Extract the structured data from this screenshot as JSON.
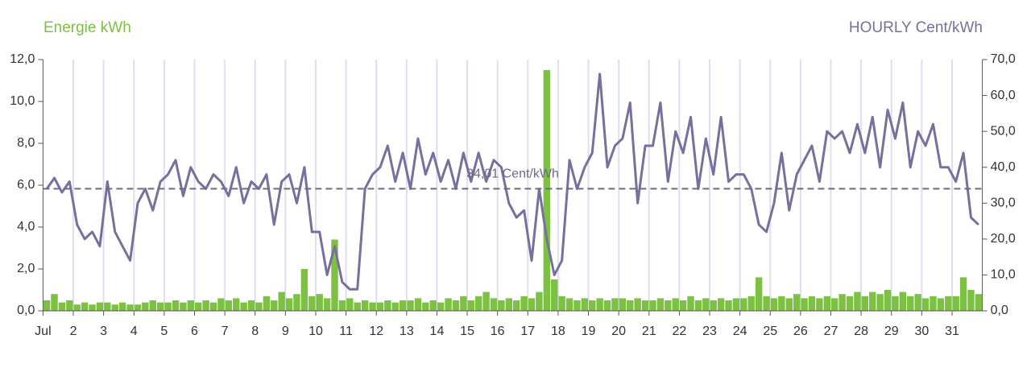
{
  "chart_data": {
    "type": "bar_line",
    "ylabel": "Energie kWh",
    "y2label": "HOURLY Cent/kWh",
    "xlim": [
      1,
      32
    ],
    "xticks": [
      {
        "value": 1,
        "label": "Jul"
      },
      2,
      3,
      4,
      5,
      6,
      7,
      8,
      9,
      10,
      11,
      12,
      13,
      14,
      15,
      16,
      17,
      18,
      19,
      20,
      21,
      22,
      23,
      24,
      25,
      26,
      27,
      28,
      29,
      30,
      31
    ],
    "ylim": [
      0,
      12
    ],
    "yticks": [
      {
        "value": 0,
        "label": "0,0"
      },
      {
        "value": 2,
        "label": "2,0"
      },
      {
        "value": 4,
        "label": "4,0"
      },
      {
        "value": 6,
        "label": "6,0"
      },
      {
        "value": 8,
        "label": "8,0"
      },
      {
        "value": 10,
        "label": "10,0"
      },
      {
        "value": 12,
        "label": "12,0"
      }
    ],
    "y2lim": [
      0,
      70
    ],
    "y2ticks": [
      {
        "value": 0,
        "label": "0,0"
      },
      {
        "value": 10,
        "label": "10,0"
      },
      {
        "value": 20,
        "label": "20,0"
      },
      {
        "value": 30,
        "label": "30,0"
      },
      {
        "value": 40,
        "label": "40,0"
      },
      {
        "value": 50,
        "label": "50,0"
      },
      {
        "value": 60,
        "label": "60,0"
      },
      {
        "value": 70,
        "label": "70,0"
      }
    ],
    "grid": true,
    "average": {
      "value": 34.01,
      "label": "34,01 Cent/kWh",
      "color": "#6e6a86"
    },
    "x": [
      1,
      1.25,
      1.5,
      1.75,
      2,
      2.25,
      2.5,
      2.75,
      3,
      3.25,
      3.5,
      3.75,
      4,
      4.25,
      4.5,
      4.75,
      5,
      5.25,
      5.5,
      5.75,
      6,
      6.25,
      6.5,
      6.75,
      7,
      7.25,
      7.5,
      7.75,
      8,
      8.25,
      8.5,
      8.75,
      9,
      9.25,
      9.5,
      9.75,
      10,
      10.25,
      10.5,
      10.75,
      11,
      11.25,
      11.5,
      11.75,
      12,
      12.25,
      12.5,
      12.75,
      13,
      13.25,
      13.5,
      13.75,
      14,
      14.25,
      14.5,
      14.75,
      15,
      15.25,
      15.5,
      15.75,
      16,
      16.25,
      16.5,
      16.75,
      17,
      17.25,
      17.5,
      17.75,
      18,
      18.25,
      18.5,
      18.75,
      19,
      19.25,
      19.5,
      19.75,
      20,
      20.25,
      20.5,
      20.75,
      21,
      21.25,
      21.5,
      21.75,
      22,
      22.25,
      22.5,
      22.75,
      23,
      23.25,
      23.5,
      23.75,
      24,
      24.25,
      24.5,
      24.75,
      25,
      25.25,
      25.5,
      25.75,
      26,
      26.25,
      26.5,
      26.75,
      27,
      27.25,
      27.5,
      27.75,
      28,
      28.25,
      28.5,
      28.75,
      29,
      29.25,
      29.5,
      29.75,
      30,
      30.25,
      30.5,
      30.75,
      31,
      31.25,
      31.5,
      31.75
    ],
    "series": [
      {
        "name": "Energie kWh",
        "color": "#7cc142",
        "axis": "y",
        "kind": "bar",
        "values": [
          0.5,
          0.8,
          0.4,
          0.5,
          0.3,
          0.4,
          0.3,
          0.4,
          0.4,
          0.3,
          0.4,
          0.3,
          0.3,
          0.4,
          0.5,
          0.4,
          0.4,
          0.5,
          0.4,
          0.5,
          0.4,
          0.5,
          0.4,
          0.6,
          0.5,
          0.6,
          0.4,
          0.5,
          0.4,
          0.7,
          0.5,
          0.9,
          0.6,
          0.8,
          2.0,
          0.7,
          0.8,
          0.6,
          3.4,
          0.5,
          0.6,
          0.4,
          0.5,
          0.4,
          0.4,
          0.5,
          0.4,
          0.5,
          0.5,
          0.6,
          0.4,
          0.5,
          0.4,
          0.6,
          0.5,
          0.7,
          0.5,
          0.7,
          0.9,
          0.6,
          0.5,
          0.6,
          0.5,
          0.7,
          0.6,
          0.9,
          11.5,
          1.5,
          0.7,
          0.6,
          0.5,
          0.6,
          0.5,
          0.6,
          0.5,
          0.6,
          0.6,
          0.5,
          0.6,
          0.5,
          0.5,
          0.6,
          0.5,
          0.6,
          0.5,
          0.7,
          0.5,
          0.6,
          0.5,
          0.6,
          0.5,
          0.6,
          0.6,
          0.7,
          1.6,
          0.7,
          0.6,
          0.7,
          0.6,
          0.8,
          0.6,
          0.7,
          0.6,
          0.7,
          0.6,
          0.8,
          0.7,
          0.9,
          0.7,
          0.9,
          0.8,
          1.0,
          0.7,
          0.9,
          0.7,
          0.8,
          0.6,
          0.7,
          0.6,
          0.7,
          0.7,
          1.6,
          1.0,
          0.8
        ]
      },
      {
        "name": "HOURLY Cent/kWh",
        "color": "#7a6e9e",
        "axis": "y2",
        "kind": "line",
        "values": [
          34,
          37,
          33,
          36,
          24,
          20,
          22,
          18,
          36,
          22,
          18,
          14,
          30,
          34,
          28,
          36,
          38,
          42,
          32,
          40,
          36,
          34,
          38,
          36,
          32,
          40,
          30,
          36,
          34,
          38,
          24,
          36,
          38,
          30,
          40,
          22,
          22,
          10,
          18,
          8,
          6,
          6,
          34,
          38,
          40,
          46,
          36,
          44,
          34,
          48,
          38,
          44,
          36,
          42,
          34,
          44,
          36,
          44,
          36,
          42,
          40,
          30,
          26,
          28,
          14,
          34,
          20,
          10,
          14,
          42,
          34,
          40,
          44,
          66,
          40,
          46,
          48,
          58,
          30,
          46,
          46,
          58,
          36,
          50,
          44,
          54,
          34,
          48,
          38,
          54,
          36,
          38,
          38,
          34,
          24,
          22,
          30,
          44,
          28,
          38,
          42,
          46,
          36,
          50,
          48,
          50,
          44,
          52,
          44,
          54,
          40,
          56,
          48,
          58,
          40,
          50,
          46,
          52,
          40,
          40,
          36,
          44,
          26,
          24
        ]
      }
    ]
  }
}
